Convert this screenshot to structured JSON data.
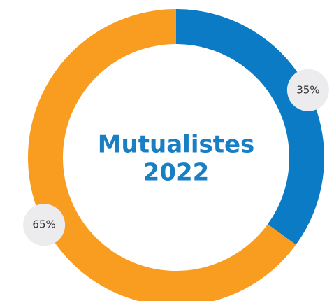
{
  "chart_data": {
    "type": "donut",
    "title_lines": [
      "Mutualistes",
      "2022"
    ],
    "values": [
      35,
      65
    ],
    "value_labels": [
      "35%",
      "65%"
    ],
    "colors": [
      "#0a7bc4",
      "#f99d20"
    ],
    "label_background": "#ececef"
  }
}
